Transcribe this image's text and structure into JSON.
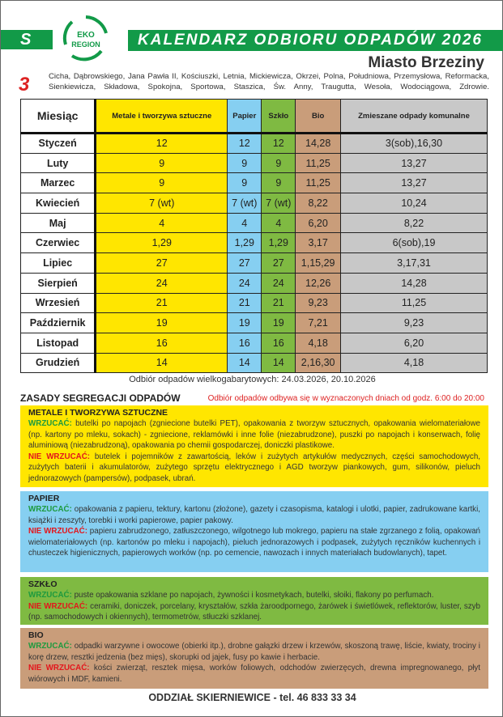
{
  "header": {
    "letter": "S",
    "title": "KALENDARZ ODBIORU ODPADÓW 2026",
    "logo_text": [
      "EKO",
      "REGION"
    ],
    "city": "Miasto Brzeziny",
    "number": "3",
    "streets": "Cicha, Dąbrowskiego, Jana Pawła II, Kościuszki, Letnia, Mickiewicza, Okrzei, Polna, Południowa, Przemysłowa, Reformacka, Sienkiewicza, Składowa, Spokojna, Sportowa, Staszica, Św. Anny, Traugutta, Wesoła, Wodociągowa, Zdrowie."
  },
  "table": {
    "headers": [
      "Miesiąc",
      "Metale i tworzywa sztuczne",
      "Papier",
      "Szkło",
      "Bio",
      "Zmieszane odpady komunalne"
    ],
    "rows": [
      [
        "Styczeń",
        "12",
        "12",
        "12",
        "14,28",
        "3(sob),16,30"
      ],
      [
        "Luty",
        "9",
        "9",
        "9",
        "11,25",
        "13,27"
      ],
      [
        "Marzec",
        "9",
        "9",
        "9",
        "11,25",
        "13,27"
      ],
      [
        "Kwiecień",
        "7 (wt)",
        "7 (wt)",
        "7 (wt)",
        "8,22",
        "10,24"
      ],
      [
        "Maj",
        "4",
        "4",
        "4",
        "6,20",
        "8,22"
      ],
      [
        "Czerwiec",
        "1,29",
        "1,29",
        "1,29",
        "3,17",
        "6(sob),19"
      ],
      [
        "Lipiec",
        "27",
        "27",
        "27",
        "1,15,29",
        "3,17,31"
      ],
      [
        "Sierpień",
        "24",
        "24",
        "24",
        "12,26",
        "14,28"
      ],
      [
        "Wrzesień",
        "21",
        "21",
        "21",
        "9,23",
        "11,25"
      ],
      [
        "Październik",
        "19",
        "19",
        "19",
        "7,21",
        "9,23"
      ],
      [
        "Listopad",
        "16",
        "16",
        "16",
        "4,18",
        "6,20"
      ],
      [
        "Grudzień",
        "14",
        "14",
        "14",
        "2,16,30",
        "4,18"
      ]
    ]
  },
  "bulky": {
    "label": "Odbiór odpadów wielkogabarytowych:",
    "dates": "24.03.2026, 20.10.2026"
  },
  "rules": {
    "title": "ZASADY SEGREGACJI ODPADÓW",
    "note": "Odbiór odpadów odbywa się w wyznaczonych dniach od godz. 6:00 do 20:00",
    "ok_label": "WRZUCAĆ:",
    "no_label": "NIE WRZUCAĆ:",
    "sections": [
      {
        "title": "METALE I TWORZYWA SZTUCZNE",
        "ok": "butelki po napojach (zgniecione butelki PET), opakowania z tworzyw sztucznych, opakowania wielomateriałowe (np. kartony po mleku, sokach) - zgniecione, reklamówki i inne folie (niezabrudzone), puszki po napojach i konserwach, folię aluminiową (niezabrudzoną), opakowania po chemii gospodarczej, doniczki plastikowe.",
        "no": "butelek i pojemników z zawartością, leków i zużytych artykułów medycznych, części samochodowych, zużytych baterii i akumulatorów, zużytego sprzętu elektrycznego i AGD tworzyw piankowych, gum, silikonów, pieluch jednorazowych (pampersów), podpasek, ubrań."
      },
      {
        "title": "PAPIER",
        "ok": "opakowania z papieru, tektury, kartonu (złożone), gazety i czasopisma, katalogi i ulotki, papier, zadrukowane kartki, książki i zeszyty, torebki i worki papierowe, papier pakowy.",
        "no": "papieru zabrudzonego, zatłuszczonego, wilgotnego lub mokrego, papieru na stałe zgrzanego z folią, opakowań wielomateriałowych (np. kartonów po mleku i napojach), pieluch jednorazowych i podpasek, zużytych ręczników kuchennych i chusteczek higienicznych, papierowych worków (np. po cemencie, nawozach i innych materiałach budowlanych), tapet."
      },
      {
        "title": "SZKŁO",
        "ok": "puste opakowania szklane po napojach, żywności i kosmetykach, butelki, słoiki, flakony po perfumach.",
        "no": "ceramiki, doniczek, porcelany, kryształów, szkła żaroodpornego, żarówek i świetlówek, reflektorów, luster, szyb (np. samochodowych i okiennych), termometrów, stłuczki szklanej."
      },
      {
        "title": "BIO",
        "ok": "odpadki warzywne i owocowe (obierki itp.), drobne gałązki drzew i krzewów, skoszoną trawę, liście, kwiaty, trociny i korę drzew, resztki jedzenia (bez mięs), skorupki od jajek, fusy po kawie i herbacie.",
        "no": "kości zwierząt, resztek mięsa, worków foliowych, odchodów zwierzęcych, drewna impregnowanego, płyt wiórowych i MDF, kamieni."
      }
    ]
  },
  "footer": "ODDZIAŁ SKIERNIEWICE - tel. 46 833 33 34",
  "colors": {
    "green": "#129a48",
    "metale": "#ffe600",
    "papier": "#86cff1",
    "szklo": "#7fba42",
    "bio": "#c99d7a",
    "zmieszane": "#c8c8c8",
    "red": "#e3161c"
  }
}
